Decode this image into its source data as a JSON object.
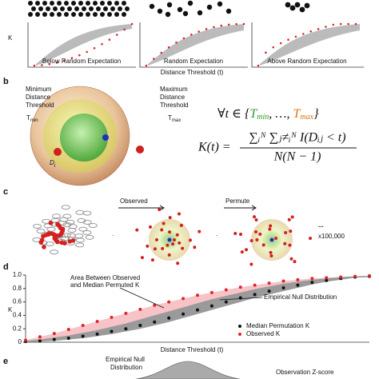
{
  "panels": {
    "a": {
      "y_label": "K",
      "captions": [
        "Below Random Expectation",
        "Random Expectation",
        "Above Random Expectation"
      ],
      "x_label": "Distance Threshold (t)"
    },
    "b": {
      "label": "b",
      "min_lines": [
        "Minimum",
        "Distance",
        "Threshold"
      ],
      "tmin": "T",
      "tmin_sub": "min",
      "max_lines": [
        "Maximum",
        "Distance",
        "Threshold"
      ],
      "tmax": "T",
      "tmax_sub": "max",
      "point": "D",
      "point_sub": "i",
      "quantifier": [
        "∀t ∈ {",
        "T",
        "min",
        ", …, ",
        "T",
        "max",
        "}"
      ],
      "k_left": "K(t) =",
      "numerator": "∑ᵢᴺ ∑ⱼ≠ᵢᴺ I(Dᵢⱼ < t)",
      "denominator": "N(N − 1)"
    },
    "c": {
      "label": "c",
      "observed": "Observed",
      "permute": "Permute",
      "ellipsis": "...",
      "repeats": "x100,000"
    },
    "e": {
      "label": "e",
      "null_lines": [
        "Empirical Null",
        "Distribution"
      ],
      "zscore": "Observation Z-score"
    }
  },
  "chart_data": {
    "type": "dotband",
    "label": "d",
    "y_label": "K",
    "x_label": "Distance Threshold (t)",
    "annotations": [
      "Area Between Observed",
      "and Median Permuted K",
      "Empirical Null Distribution"
    ],
    "x": [
      0,
      1,
      2,
      3,
      4,
      5,
      6,
      7,
      8,
      9,
      10,
      11,
      12,
      13,
      14,
      15,
      16,
      17,
      18,
      19,
      20,
      21,
      22,
      23,
      24
    ],
    "xlim": [
      0,
      24
    ],
    "ylim": [
      0,
      1
    ],
    "yticks": [
      0,
      0.2,
      0.4,
      0.6,
      0.8,
      {
        "value": 1,
        "label": "1.0"
      }
    ],
    "null_band": {
      "color": "#9a9a9a",
      "lower": [
        0,
        0.01,
        0.02,
        0.04,
        0.06,
        0.09,
        0.12,
        0.16,
        0.2,
        0.25,
        0.3,
        0.36,
        0.42,
        0.48,
        0.54,
        0.6,
        0.66,
        0.71,
        0.76,
        0.81,
        0.86,
        0.9,
        0.93,
        0.96,
        0.97
      ],
      "upper": [
        0.02,
        0.04,
        0.07,
        0.1,
        0.14,
        0.18,
        0.23,
        0.28,
        0.34,
        0.4,
        0.46,
        0.52,
        0.58,
        0.64,
        0.69,
        0.74,
        0.79,
        0.83,
        0.87,
        0.9,
        0.93,
        0.95,
        0.97,
        0.98,
        0.99
      ]
    },
    "area_color": "#f6b8bc",
    "series": [
      {
        "name": "Median Permutation K",
        "color": "#111111",
        "values": [
          0.01,
          0.02,
          0.04,
          0.06,
          0.09,
          0.12,
          0.16,
          0.2,
          0.25,
          0.3,
          0.36,
          0.42,
          0.48,
          0.54,
          0.6,
          0.66,
          0.71,
          0.76,
          0.81,
          0.85,
          0.89,
          0.92,
          0.95,
          0.97,
          0.98
        ]
      },
      {
        "name": "Observed K",
        "color": "#e0242c",
        "values": [
          0.03,
          0.08,
          0.13,
          0.19,
          0.25,
          0.31,
          0.37,
          0.43,
          0.49,
          0.55,
          0.6,
          0.65,
          0.7,
          0.74,
          0.78,
          0.82,
          0.85,
          0.88,
          0.91,
          0.93,
          0.95,
          0.96,
          0.97,
          0.98,
          0.99
        ]
      }
    ]
  }
}
